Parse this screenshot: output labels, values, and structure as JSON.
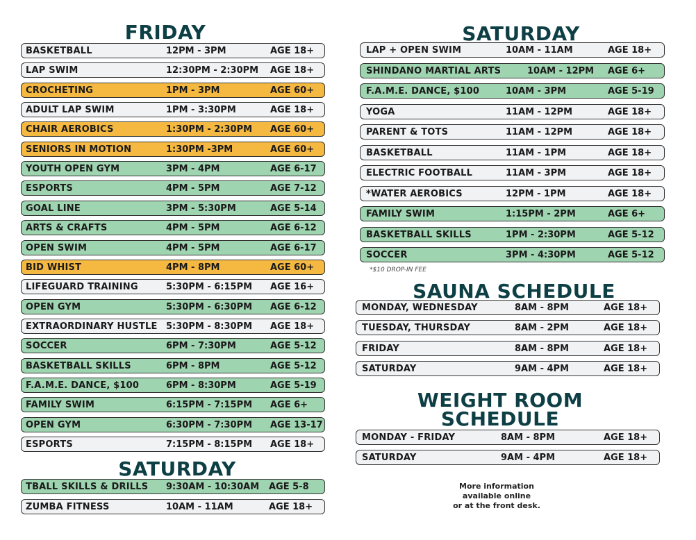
{
  "friday": {
    "title": "FRIDAY",
    "rows": [
      [
        "BASKETBALL",
        "12PM - 3PM",
        "AGE 18+",
        "white"
      ],
      [
        "LAP SWIM",
        "12:30PM - 2:30PM",
        "AGE 18+",
        "white"
      ],
      [
        "CROCHETING",
        "1PM - 3PM",
        "AGE 60+",
        "orange"
      ],
      [
        "ADULT LAP SWIM",
        "1PM - 3:30PM",
        "AGE 18+",
        "white"
      ],
      [
        "CHAIR AEROBICS",
        "1:30PM - 2:30PM",
        "AGE 60+",
        "orange"
      ],
      [
        "SENIORS IN MOTION",
        "1:30PM -3PM",
        "AGE 60+",
        "orange"
      ],
      [
        "YOUTH OPEN GYM",
        "3PM - 4PM",
        "AGE 6-17",
        "green"
      ],
      [
        "ESPORTS",
        "4PM - 5PM",
        "AGE 7-12",
        "green"
      ],
      [
        "GOAL LINE",
        "3PM - 5:30PM",
        "AGE 5-14",
        "green"
      ],
      [
        "ARTS & CRAFTS",
        "4PM - 5PM",
        "AGE 6-12",
        "green"
      ],
      [
        "OPEN SWIM",
        "4PM - 5PM",
        "AGE 6-17",
        "green"
      ],
      [
        "BID WHIST",
        "4PM - 8PM",
        "AGE 60+",
        "orange"
      ],
      [
        "LIFEGUARD TRAINING",
        "5:30PM - 6:15PM",
        "AGE 16+",
        "white"
      ],
      [
        "OPEN GYM",
        "5:30PM - 6:30PM",
        "AGE 6-12",
        "green"
      ],
      [
        "EXTRAORDINARY HUSTLE",
        "5:30PM - 8:30PM",
        "AGE 18+",
        "white"
      ],
      [
        "SOCCER",
        "6PM - 7:30PM",
        "AGE 5-12",
        "green"
      ],
      [
        "BASKETBALL SKILLS",
        "6PM - 8PM",
        "AGE 5-12",
        "green"
      ],
      [
        "F.A.M.E. DANCE, $100",
        "6PM - 8:30PM",
        "AGE 5-19",
        "green"
      ],
      [
        "FAMILY SWIM",
        "6:15PM - 7:15PM",
        "AGE 6+",
        "green"
      ],
      [
        "OPEN GYM",
        "6:30PM - 7:30PM",
        "AGE 13-17",
        "green"
      ],
      [
        "ESPORTS",
        "7:15PM - 8:15PM",
        "AGE 18+",
        "white"
      ]
    ]
  },
  "saturday_left": {
    "title": "SATURDAY",
    "rows": [
      [
        "TBALL SKILLS & DRILLS",
        "9:30AM - 10:30AM",
        "AGE 5-8",
        "green"
      ],
      [
        "ZUMBA FITNESS",
        "10AM - 11AM",
        "AGE 18+",
        "white"
      ]
    ]
  },
  "saturday_right": {
    "title": "SATURDAY",
    "rows": [
      [
        "LAP + OPEN SWIM",
        "10AM - 11AM",
        "AGE 18+",
        "white"
      ],
      [
        "SHINDANO MARTIAL ARTS",
        "10AM - 12PM",
        "AGE 6+",
        "green"
      ],
      [
        "F.A.M.E. DANCE, $100",
        "10AM - 3PM",
        "AGE 5-19",
        "green"
      ],
      [
        "YOGA",
        "11AM - 12PM",
        "AGE 18+",
        "white"
      ],
      [
        "PARENT & TOTS",
        "11AM - 12PM",
        "AGE 18+",
        "white"
      ],
      [
        "BASKETBALL",
        "11AM - 1PM",
        "AGE 18+",
        "white"
      ],
      [
        "ELECTRIC FOOTBALL",
        "11AM - 3PM",
        "AGE 18+",
        "white"
      ],
      [
        "*WATER AEROBICS",
        "12PM - 1PM",
        "AGE 18+",
        "white"
      ],
      [
        "FAMILY SWIM",
        "1:15PM - 2PM",
        "AGE 6+",
        "green"
      ],
      [
        "BASKETBALL SKILLS",
        "1PM - 2:30PM",
        "AGE 5-12",
        "green"
      ],
      [
        "SOCCER",
        "3PM - 4:30PM",
        "AGE 5-12",
        "green"
      ]
    ],
    "note": "*$10 DROP-IN FEE"
  },
  "sauna": {
    "title": "SAUNA SCHEDULE",
    "rows": [
      [
        "MONDAY, WEDNESDAY",
        "8AM - 8PM",
        "AGE 18+",
        "white"
      ],
      [
        "TUESDAY, THURSDAY",
        "8AM - 2PM",
        "AGE 18+",
        "white"
      ],
      [
        "FRIDAY",
        "8AM - 8PM",
        "AGE 18+",
        "white"
      ],
      [
        "SATURDAY",
        "9AM - 4PM",
        "AGE 18+",
        "white"
      ]
    ]
  },
  "weight_room": {
    "title_line1": "WEIGHT ROOM",
    "title_line2": "SCHEDULE",
    "rows": [
      [
        "MONDAY - FRIDAY",
        "8AM - 8PM",
        "AGE 18+",
        "white"
      ],
      [
        "SATURDAY",
        "9AM - 4PM",
        "AGE 18+",
        "white"
      ]
    ]
  },
  "info": {
    "line1": "More information",
    "line2": "available online",
    "line3": "or at the front desk."
  },
  "colors": {
    "title": "#0d3f45",
    "orange": "#f5b942",
    "green": "#9fd4b1",
    "white": "#f1f2f4"
  }
}
